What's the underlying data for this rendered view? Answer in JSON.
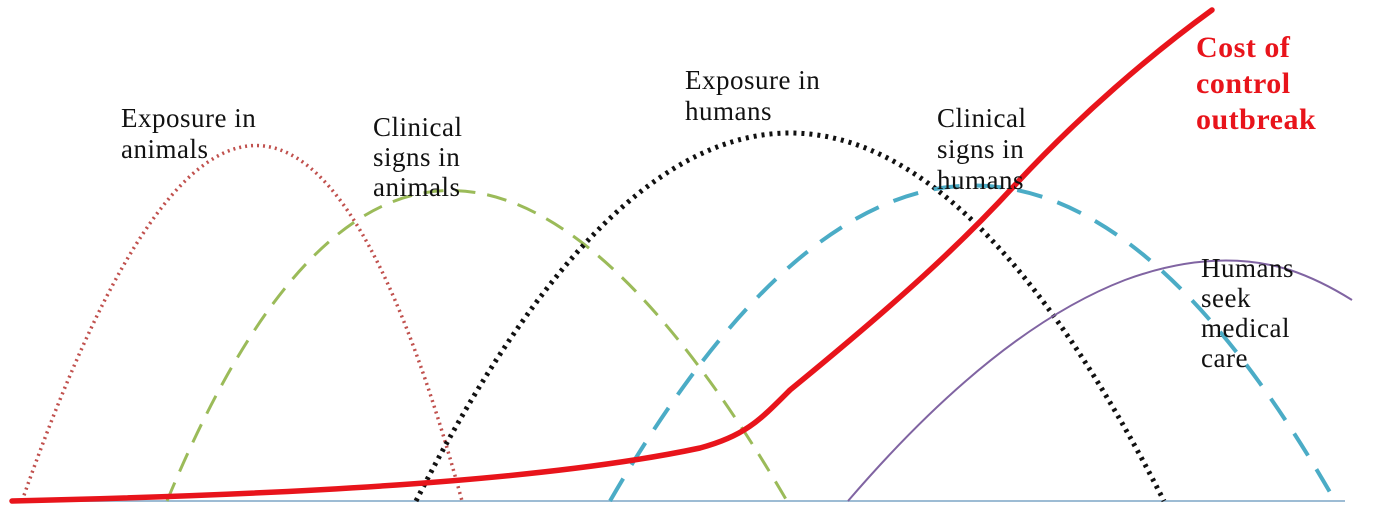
{
  "colors": {
    "exposure_animals": "#c0504d",
    "clinical_animals": "#9bbb59",
    "exposure_humans": "#111111",
    "clinical_humans": "#4bacc6",
    "seek_care": "#8064a2",
    "cost": "#e8141b",
    "baseline": "#9dbcd4"
  },
  "labels": {
    "exposure_animals": [
      "Exposure in",
      "animals"
    ],
    "clinical_animals": [
      "Clinical",
      "signs in",
      "animals"
    ],
    "exposure_humans": [
      "Exposure in",
      "humans"
    ],
    "clinical_humans": [
      "Clinical",
      "signs in",
      "humans"
    ],
    "seek_care": [
      "Humans",
      "seek",
      "medical",
      "care"
    ],
    "cost": [
      "Cost of",
      "control",
      "outbreak"
    ]
  }
}
